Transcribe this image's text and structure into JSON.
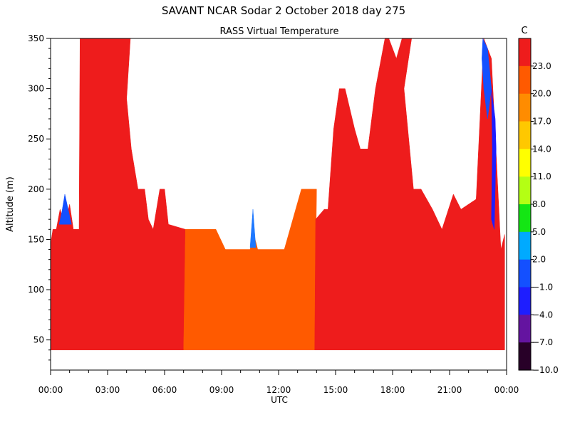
{
  "chart_data": {
    "type": "heatmap",
    "title": "SAVANT   NCAR Sodar    2 October 2018   day 275",
    "subtitle": "RASS Virtual Temperature",
    "xlabel": "UTC",
    "ylabel": "Altitude (m)",
    "x_ticks": [
      "00:00",
      "03:00",
      "06:00",
      "09:00",
      "12:00",
      "15:00",
      "18:00",
      "21:00",
      "00:00"
    ],
    "x_range_hours": [
      0,
      24
    ],
    "y_ticks": [
      50,
      100,
      150,
      200,
      250,
      300,
      350
    ],
    "y_range": [
      20,
      350
    ],
    "data_altitude_range": [
      40,
      350
    ],
    "grid": false,
    "colorbar": {
      "unit": "C",
      "labels": [
        "23.0",
        "20.0",
        "17.0",
        "14.0",
        "11.0",
        "8.0",
        "5.0",
        "2.0",
        "−1.0",
        "−4.0",
        "−7.0",
        "−10.0"
      ],
      "colors": [
        "#ee1c1c",
        "#ff5a00",
        "#ff8c00",
        "#ffc800",
        "#ffff00",
        "#b4ff14",
        "#14e614",
        "#00aaff",
        "#1450ff",
        "#1e1eff",
        "#6414a0",
        "#280028"
      ]
    },
    "fields": {
      "left_red": {
        "color": "#ee1c1c",
        "value_c": 24.5,
        "outline": [
          [
            0.0,
            40
          ],
          [
            0.0,
            145
          ],
          [
            0.12,
            160
          ],
          [
            0.3,
            160
          ],
          [
            0.5,
            180
          ],
          [
            0.75,
            165
          ],
          [
            1.0,
            185
          ],
          [
            1.2,
            160
          ],
          [
            1.5,
            160
          ],
          [
            1.55,
            350
          ],
          [
            4.2,
            350
          ],
          [
            4.0,
            290
          ],
          [
            4.25,
            240
          ],
          [
            4.6,
            200
          ],
          [
            4.95,
            200
          ],
          [
            5.15,
            170
          ],
          [
            5.4,
            160
          ],
          [
            5.75,
            200
          ],
          [
            6.0,
            200
          ],
          [
            6.2,
            165
          ],
          [
            7.1,
            160
          ],
          [
            7.0,
            40
          ]
        ]
      },
      "left_tip_blue": {
        "color": "#1450ff",
        "value_c": -1.0,
        "outline": [
          [
            0.45,
            165
          ],
          [
            0.6,
            178
          ],
          [
            0.75,
            195
          ],
          [
            0.95,
            178
          ],
          [
            1.1,
            165
          ]
        ]
      },
      "mid_orange": {
        "color": "#ff5a00",
        "value_c": 21.5,
        "outline": [
          [
            7.0,
            40
          ],
          [
            7.1,
            160
          ],
          [
            8.7,
            160
          ],
          [
            9.2,
            140
          ],
          [
            10.5,
            140
          ],
          [
            10.7,
            155
          ],
          [
            10.9,
            140
          ],
          [
            12.3,
            140
          ],
          [
            12.6,
            160
          ],
          [
            13.2,
            200
          ],
          [
            14.0,
            200
          ],
          [
            13.9,
            40
          ]
        ]
      },
      "mid_blue_spike": {
        "color": "#1e78ff",
        "value_c": 2.0,
        "outline": [
          [
            10.5,
            142
          ],
          [
            10.65,
            180
          ],
          [
            10.8,
            142
          ]
        ]
      },
      "right_red": {
        "color": "#ee1c1c",
        "value_c": 24.5,
        "outline": [
          [
            13.9,
            40
          ],
          [
            13.95,
            170
          ],
          [
            14.4,
            180
          ],
          [
            14.6,
            180
          ],
          [
            14.9,
            260
          ],
          [
            15.2,
            300
          ],
          [
            15.5,
            300
          ],
          [
            16.0,
            260
          ],
          [
            16.3,
            240
          ],
          [
            16.7,
            240
          ],
          [
            17.1,
            300
          ],
          [
            17.4,
            330
          ],
          [
            17.6,
            350
          ],
          [
            17.8,
            350
          ],
          [
            18.2,
            330
          ],
          [
            18.5,
            350
          ],
          [
            19.0,
            350
          ],
          [
            18.6,
            300
          ],
          [
            19.1,
            200
          ],
          [
            19.5,
            200
          ],
          [
            20.1,
            180
          ],
          [
            20.6,
            160
          ],
          [
            21.2,
            195
          ],
          [
            21.6,
            180
          ],
          [
            22.4,
            190
          ],
          [
            22.8,
            350
          ],
          [
            23.2,
            330
          ],
          [
            23.7,
            140
          ],
          [
            23.9,
            155
          ],
          [
            23.9,
            40
          ]
        ]
      },
      "right_top_blue": {
        "color": "#1450ff",
        "value_c": -1.0,
        "outline": [
          [
            22.75,
            350
          ],
          [
            23.0,
            340
          ],
          [
            23.2,
            300
          ],
          [
            23.0,
            270
          ],
          [
            22.8,
            300
          ],
          [
            22.7,
            330
          ]
        ]
      },
      "right_edge_dark": {
        "color": "#1e1eff",
        "value_c": -4.0,
        "outline": [
          [
            23.2,
            300
          ],
          [
            23.4,
            270
          ],
          [
            23.45,
            240
          ],
          [
            23.35,
            160
          ],
          [
            23.2,
            170
          ],
          [
            23.25,
            240
          ]
        ]
      }
    }
  }
}
